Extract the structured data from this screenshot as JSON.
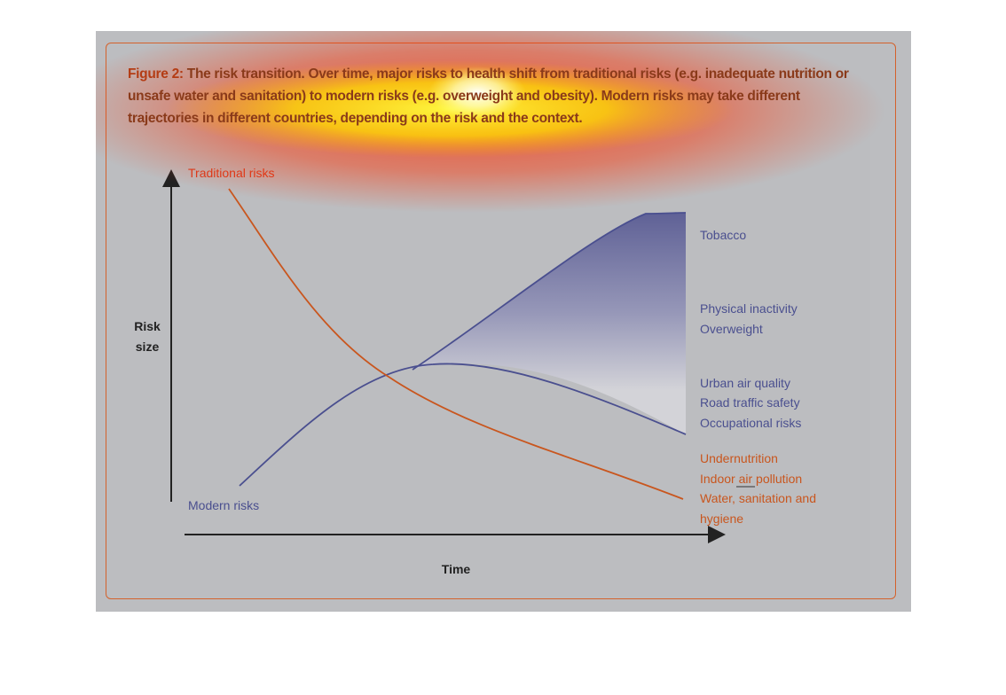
{
  "caption": {
    "lead": "Figure 2:",
    "text": " The risk transition. Over time, major risks to health shift from traditional risks (e.g. inadequate nutrition or unsafe water and sanitation) to modern risks (e.g. overweight and obesity). Modern risks may take different trajectories in different countries, depending on the risk and the context."
  },
  "axes": {
    "y_label_line1": "Risk",
    "y_label_line2": "size",
    "x_label": "Time"
  },
  "curves": {
    "traditional": "Traditional risks",
    "modern": "Modern risks"
  },
  "modern_outcomes": {
    "top": "Tobacco",
    "middle_1": "Physical inactivity",
    "middle_2": "Overweight",
    "lower_1": "Urban air quality",
    "lower_2": "Road traffic safety",
    "lower_3": "Occupational risks"
  },
  "traditional_outcomes": {
    "line1": "Undernutrition",
    "line2": "Indoor air pollution",
    "line3": "Water, sanitation and",
    "line4": "hygiene"
  },
  "colors": {
    "background": "#bcbdc0",
    "traditional": "#c9561e",
    "modern": "#4a4f8f",
    "frame": "#d4622c",
    "attention_overlay": "heatmap yellow-red"
  }
}
